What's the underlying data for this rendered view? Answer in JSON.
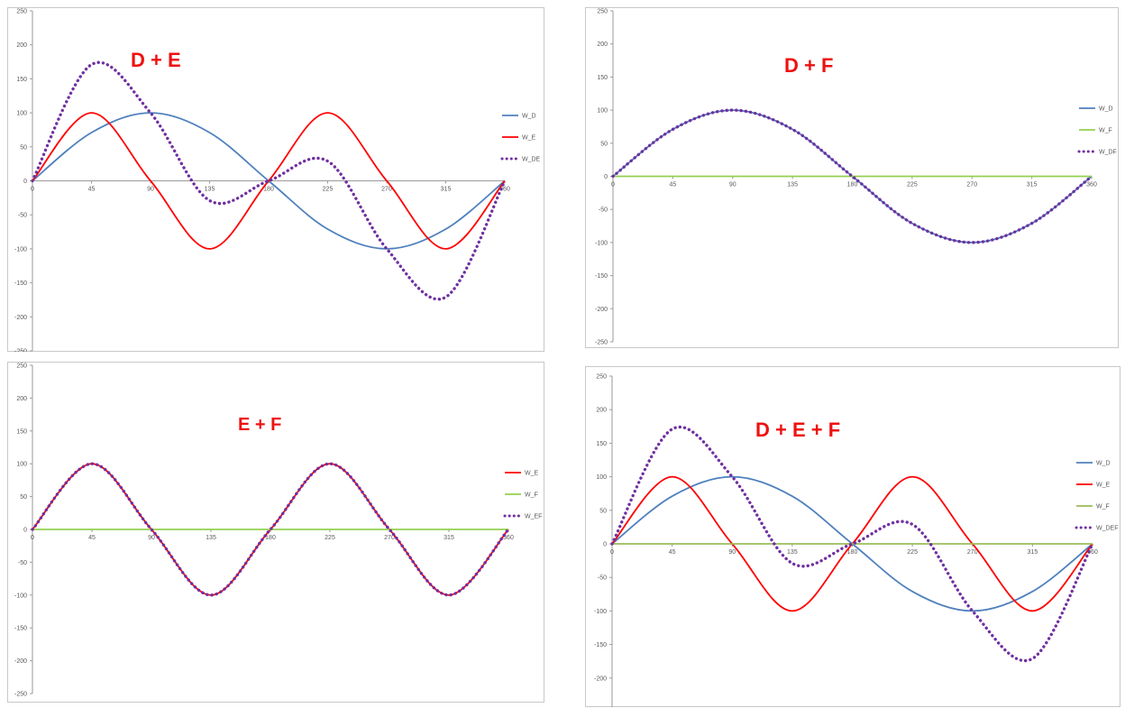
{
  "chart_data": [
    {
      "type": "line",
      "title": "D + E",
      "x": [
        0,
        45,
        90,
        135,
        180,
        225,
        270,
        315,
        360
      ],
      "xlim": [
        0,
        360
      ],
      "ylim": [
        -250,
        250
      ],
      "yticks": [
        250,
        200,
        150,
        100,
        50,
        0,
        -50,
        -100,
        -150,
        -200,
        -250
      ],
      "grid": false,
      "legend": "right",
      "series": [
        {
          "name": "W_D",
          "values": [
            0,
            71,
            100,
            71,
            0,
            -71,
            -100,
            -71,
            0
          ],
          "color": "#4f81bd",
          "style": "solid"
        },
        {
          "name": "W_E",
          "values": [
            0,
            100,
            0,
            -100,
            0,
            100,
            0,
            -100,
            0
          ],
          "color": "#ff0000",
          "style": "solid"
        },
        {
          "name": "W_DE",
          "values": [
            0,
            171,
            100,
            -29,
            0,
            29,
            -100,
            -171,
            0
          ],
          "color": "#7030a0",
          "style": "dotted"
        }
      ]
    },
    {
      "type": "line",
      "title": "D + F",
      "x": [
        0,
        45,
        90,
        135,
        180,
        225,
        270,
        315,
        360
      ],
      "xlim": [
        0,
        360
      ],
      "ylim": [
        -250,
        250
      ],
      "yticks": [
        250,
        200,
        150,
        100,
        50,
        0,
        -50,
        -100,
        -150,
        -200,
        -250
      ],
      "grid": false,
      "legend": "right",
      "series": [
        {
          "name": "W_D",
          "values": [
            0,
            71,
            100,
            71,
            0,
            -71,
            -100,
            -71,
            0
          ],
          "color": "#4f81bd",
          "style": "solid"
        },
        {
          "name": "W_F",
          "values": [
            0,
            0,
            0,
            0,
            0,
            0,
            0,
            0,
            0
          ],
          "color": "#92d050",
          "style": "solid"
        },
        {
          "name": "W_DF",
          "values": [
            0,
            71,
            100,
            71,
            0,
            -71,
            -100,
            -71,
            0
          ],
          "color": "#7030a0",
          "style": "dotted"
        }
      ]
    },
    {
      "type": "line",
      "title": "E + F",
      "x": [
        0,
        45,
        90,
        135,
        180,
        225,
        270,
        315,
        360
      ],
      "xlim": [
        0,
        360
      ],
      "ylim": [
        -250,
        250
      ],
      "yticks": [
        250,
        200,
        150,
        100,
        50,
        0,
        -50,
        -100,
        -150,
        -200,
        -250
      ],
      "grid": false,
      "legend": "right",
      "series": [
        {
          "name": "W_E",
          "values": [
            0,
            100,
            0,
            -100,
            0,
            100,
            0,
            -100,
            0
          ],
          "color": "#ff0000",
          "style": "solid"
        },
        {
          "name": "W_F",
          "values": [
            0,
            0,
            0,
            0,
            0,
            0,
            0,
            0,
            0
          ],
          "color": "#92d050",
          "style": "solid"
        },
        {
          "name": "W_EF",
          "values": [
            0,
            100,
            0,
            -100,
            0,
            100,
            0,
            -100,
            0
          ],
          "color": "#7030a0",
          "style": "dotted"
        }
      ]
    },
    {
      "type": "line",
      "title": "D + E + F",
      "x": [
        0,
        45,
        90,
        135,
        180,
        225,
        270,
        315,
        360
      ],
      "xlim": [
        0,
        360
      ],
      "ylim": [
        -250,
        250
      ],
      "yticks": [
        250,
        200,
        150,
        100,
        50,
        0,
        -50,
        -100,
        -150,
        -200,
        -250
      ],
      "grid": false,
      "legend": "right",
      "series": [
        {
          "name": "W_D",
          "values": [
            0,
            71,
            100,
            71,
            0,
            -71,
            -100,
            -71,
            0
          ],
          "color": "#4f81bd",
          "style": "solid"
        },
        {
          "name": "W_E",
          "values": [
            0,
            100,
            0,
            -100,
            0,
            100,
            0,
            -100,
            0
          ],
          "color": "#ff0000",
          "style": "solid"
        },
        {
          "name": "W_F",
          "values": [
            0,
            0,
            0,
            0,
            0,
            0,
            0,
            0,
            0
          ],
          "color": "#9bbb59",
          "style": "solid"
        },
        {
          "name": "W_DEF",
          "values": [
            0,
            171,
            100,
            -29,
            0,
            29,
            -100,
            -171,
            0
          ],
          "color": "#7030a0",
          "style": "dotted"
        }
      ]
    }
  ]
}
